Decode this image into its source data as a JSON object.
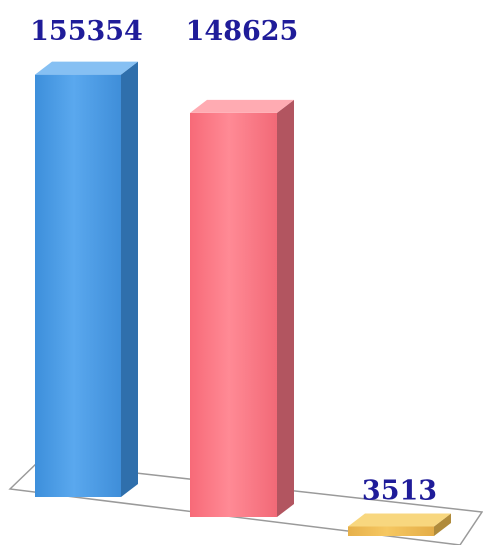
{
  "chart_data": {
    "type": "bar",
    "categories": [
      "",
      "",
      ""
    ],
    "values": [
      155354,
      148625,
      3513
    ],
    "data_labels": [
      "155354",
      "148625",
      "3513"
    ],
    "title": "",
    "xlabel": "",
    "ylabel": "",
    "ylim": [
      0,
      160000
    ],
    "grid": false,
    "legend": "none",
    "style": "3d-column"
  },
  "colors": {
    "bars": [
      {
        "front": "#4a9ee8",
        "side": "#2f6fac",
        "top": "#86c0f3"
      },
      {
        "front": "#fe7a86",
        "side": "#b25560",
        "top": "#ffabb2"
      },
      {
        "front": "#efbd55",
        "side": "#b08b3b",
        "top": "#f8d77f"
      }
    ],
    "label": "#1f1c99",
    "floor_line": "#9a9a9a"
  }
}
